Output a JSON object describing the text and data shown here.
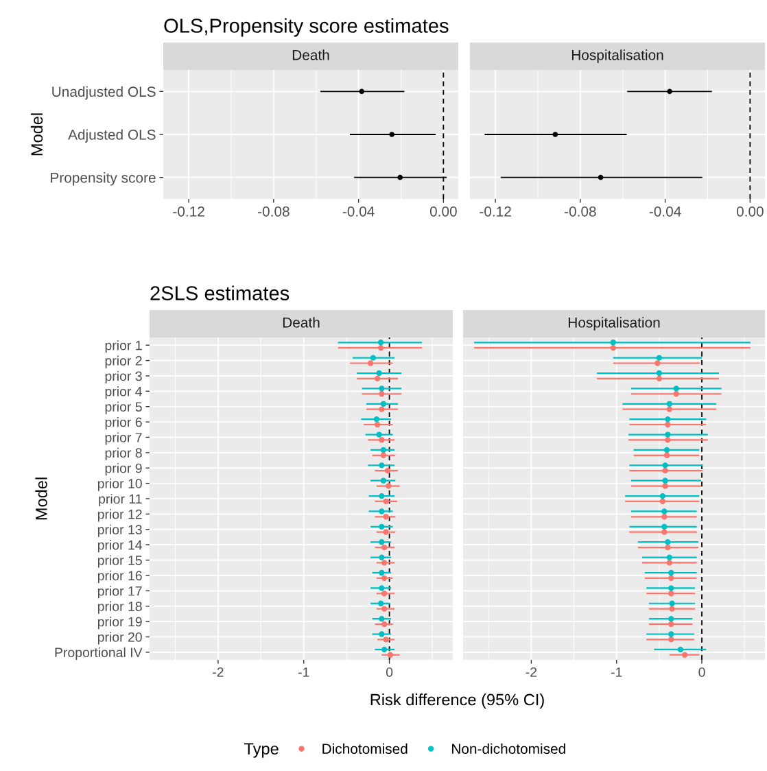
{
  "chart_data": [
    {
      "type": "scatter",
      "orientation": "horizontal",
      "title": "OLS,Propensity score estimates",
      "subtitle": "Death",
      "ylabel": "Model",
      "marker": "circle",
      "grid": true,
      "categories": [
        "Unadjusted OLS",
        "Adjusted OLS",
        "Propensity score"
      ],
      "xlim": [
        -0.132,
        0.007
      ],
      "xticks": [
        -0.12,
        -0.08,
        -0.04,
        {
          "value": 0,
          "label": "0.00"
        }
      ],
      "ref_lines": [
        {
          "axis": "x",
          "value": 0,
          "color": "#000000",
          "line_style": "dashed"
        }
      ],
      "series": [
        {
          "color": "#000000",
          "values": [
            -0.0385,
            -0.0243,
            -0.0204
          ],
          "errors": [
            [
              -0.058,
              -0.0184
            ],
            [
              -0.0441,
              -0.0036
            ],
            [
              -0.0421,
              0.0016
            ]
          ]
        }
      ]
    },
    {
      "type": "scatter",
      "orientation": "horizontal",
      "subtitle": "Hospitalisation",
      "marker": "circle",
      "grid": true,
      "tick_labels": "x",
      "categories": [
        null,
        null,
        null
      ],
      "xlim": [
        -0.132,
        0.007
      ],
      "xticks": [
        -0.12,
        -0.08,
        -0.04,
        {
          "value": 0,
          "label": "0.00"
        }
      ],
      "ref_lines": [
        {
          "axis": "x",
          "value": 0,
          "color": "#000000",
          "line_style": "dashed"
        }
      ],
      "series": [
        {
          "color": "#000000",
          "values": [
            -0.0379,
            -0.0918,
            -0.0704
          ],
          "errors": [
            [
              -0.0579,
              -0.018
            ],
            [
              -0.1251,
              -0.0581
            ],
            [
              -0.1175,
              -0.0225
            ]
          ]
        }
      ]
    },
    {
      "type": "scatter",
      "orientation": "horizontal",
      "title": "2SLS estimates",
      "subtitle": "Death",
      "ylabel": "Model",
      "xlabel": "Risk difference (95% CI)",
      "marker": "circle",
      "grid": true,
      "legend": "bottom",
      "legend_title": "Type",
      "categories": [
        "prior 1",
        "prior 2",
        "prior 3",
        "prior 4",
        "prior 5",
        "prior 6",
        "prior 7",
        "prior 8",
        "prior 9",
        "prior 10",
        "prior 11",
        "prior 12",
        "prior 13",
        "prior 14",
        "prior 15",
        "prior 16",
        "prior 17",
        "prior 18",
        "prior 19",
        "prior 20",
        "Proportional IV"
      ],
      "xlim": [
        -2.8,
        0.74
      ],
      "xticks": [
        -2,
        -1,
        0
      ],
      "ref_lines": [
        {
          "axis": "x",
          "value": 0,
          "color": "#000000",
          "line_style": "dashed"
        }
      ],
      "series": [
        {
          "name": "Dichotomised",
          "color": "#f8766d",
          "values": [
            -0.1,
            -0.22,
            -0.14,
            -0.09,
            -0.09,
            -0.14,
            -0.09,
            -0.07,
            -0.02,
            -0.01,
            -0.04,
            -0.04,
            -0.04,
            -0.06,
            -0.06,
            -0.06,
            -0.06,
            -0.06,
            -0.06,
            -0.04,
            0.01
          ],
          "errors": [
            [
              -0.6,
              0.38
            ],
            [
              -0.46,
              0.04
            ],
            [
              -0.38,
              0.1
            ],
            [
              -0.32,
              0.14
            ],
            [
              -0.27,
              0.1
            ],
            [
              -0.3,
              0.04
            ],
            [
              -0.25,
              0.06
            ],
            [
              -0.2,
              0.07
            ],
            [
              -0.17,
              0.1
            ],
            [
              -0.15,
              0.12
            ],
            [
              -0.17,
              0.09
            ],
            [
              -0.17,
              0.07
            ],
            [
              -0.15,
              0.07
            ],
            [
              -0.17,
              0.06
            ],
            [
              -0.15,
              0.06
            ],
            [
              -0.15,
              0.04
            ],
            [
              -0.15,
              0.06
            ],
            [
              -0.15,
              0.06
            ],
            [
              -0.17,
              0.04
            ],
            [
              -0.14,
              0.06
            ],
            [
              -0.09,
              0.12
            ]
          ]
        },
        {
          "name": "Non-dichotomised",
          "color": "#00bfc4",
          "values": [
            -0.1,
            -0.19,
            -0.12,
            -0.09,
            -0.07,
            -0.15,
            -0.12,
            -0.07,
            -0.09,
            -0.07,
            -0.09,
            -0.09,
            -0.09,
            -0.09,
            -0.09,
            -0.09,
            -0.09,
            -0.1,
            -0.09,
            -0.09,
            -0.06
          ],
          "errors": [
            [
              -0.6,
              0.38
            ],
            [
              -0.43,
              0.06
            ],
            [
              -0.38,
              0.14
            ],
            [
              -0.32,
              0.14
            ],
            [
              -0.27,
              0.1
            ],
            [
              -0.33,
              0.02
            ],
            [
              -0.28,
              0.04
            ],
            [
              -0.22,
              0.06
            ],
            [
              -0.25,
              0.06
            ],
            [
              -0.22,
              0.07
            ],
            [
              -0.24,
              0.06
            ],
            [
              -0.24,
              0.04
            ],
            [
              -0.22,
              0.04
            ],
            [
              -0.22,
              0.02
            ],
            [
              -0.22,
              0.02
            ],
            [
              -0.2,
              0.02
            ],
            [
              -0.22,
              0.02
            ],
            [
              -0.22,
              0.01
            ],
            [
              -0.2,
              0.02
            ],
            [
              -0.2,
              0.02
            ],
            [
              -0.17,
              0.06
            ]
          ]
        }
      ]
    },
    {
      "type": "scatter",
      "orientation": "horizontal",
      "subtitle": "Hospitalisation",
      "marker": "circle",
      "grid": true,
      "tick_labels": "x",
      "categories": [
        null,
        null,
        null,
        null,
        null,
        null,
        null,
        null,
        null,
        null,
        null,
        null,
        null,
        null,
        null,
        null,
        null,
        null,
        null,
        null,
        null
      ],
      "xlim": [
        -2.8,
        0.74
      ],
      "xticks": [
        -2,
        -1,
        0
      ],
      "ref_lines": [
        {
          "axis": "x",
          "value": 0,
          "color": "#000000",
          "line_style": "dashed"
        }
      ],
      "series": [
        {
          "color": "#f8766d",
          "values": [
            -1.04,
            -0.52,
            -0.5,
            -0.3,
            -0.38,
            -0.4,
            -0.4,
            -0.41,
            -0.43,
            -0.43,
            -0.46,
            -0.44,
            -0.44,
            -0.4,
            -0.38,
            -0.36,
            -0.36,
            -0.35,
            -0.36,
            -0.36,
            -0.2
          ],
          "errors": [
            [
              -2.67,
              0.57
            ],
            [
              -1.04,
              -0.02
            ],
            [
              -1.23,
              0.2
            ],
            [
              -0.83,
              0.23
            ],
            [
              -0.93,
              0.17
            ],
            [
              -0.85,
              0.05
            ],
            [
              -0.86,
              0.07
            ],
            [
              -0.8,
              -0.03
            ],
            [
              -0.85,
              0.01
            ],
            [
              -0.83,
              -0.01
            ],
            [
              -0.9,
              -0.03
            ],
            [
              -0.83,
              -0.06
            ],
            [
              -0.85,
              -0.06
            ],
            [
              -0.75,
              -0.04
            ],
            [
              -0.7,
              -0.06
            ],
            [
              -0.67,
              -0.06
            ],
            [
              -0.65,
              -0.08
            ],
            [
              -0.62,
              -0.08
            ],
            [
              -0.62,
              -0.11
            ],
            [
              -0.65,
              -0.09
            ],
            [
              -0.38,
              -0.03
            ]
          ]
        },
        {
          "color": "#00bfc4",
          "values": [
            -1.04,
            -0.5,
            -0.5,
            -0.3,
            -0.38,
            -0.4,
            -0.4,
            -0.41,
            -0.43,
            -0.43,
            -0.46,
            -0.44,
            -0.44,
            -0.4,
            -0.38,
            -0.36,
            -0.36,
            -0.35,
            -0.36,
            -0.36,
            -0.25
          ],
          "errors": [
            [
              -2.67,
              0.57
            ],
            [
              -1.04,
              0
            ],
            [
              -1.23,
              0.2
            ],
            [
              -0.83,
              0.23
            ],
            [
              -0.93,
              0.17
            ],
            [
              -0.85,
              0.05
            ],
            [
              -0.86,
              0.07
            ],
            [
              -0.8,
              -0.03
            ],
            [
              -0.85,
              0.01
            ],
            [
              -0.83,
              -0.01
            ],
            [
              -0.9,
              -0.03
            ],
            [
              -0.83,
              -0.06
            ],
            [
              -0.85,
              -0.06
            ],
            [
              -0.75,
              -0.04
            ],
            [
              -0.7,
              -0.06
            ],
            [
              -0.67,
              -0.06
            ],
            [
              -0.65,
              -0.08
            ],
            [
              -0.62,
              -0.08
            ],
            [
              -0.62,
              -0.11
            ],
            [
              -0.65,
              -0.09
            ],
            [
              -0.56,
              0.05
            ]
          ]
        }
      ]
    }
  ]
}
